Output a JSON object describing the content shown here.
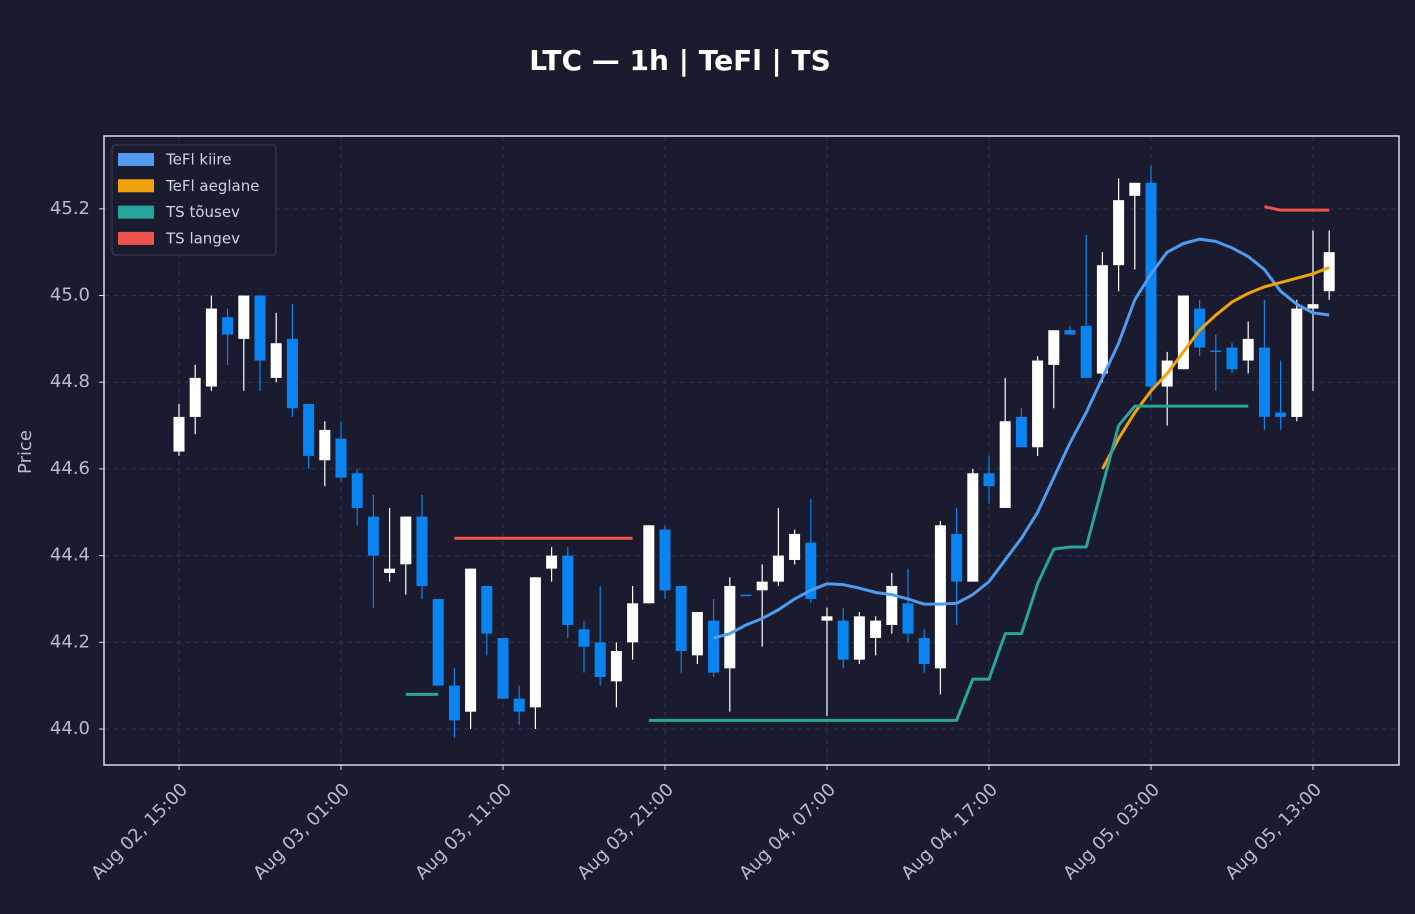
{
  "chart_data": {
    "type": "candlestick",
    "title": "LTC — 1h  |  TeFl  |  TS",
    "y_label": "Price",
    "categories": [
      "Aug 02, 15:00",
      null,
      null,
      null,
      null,
      null,
      null,
      null,
      null,
      null,
      "Aug 03, 01:00",
      null,
      null,
      null,
      null,
      null,
      null,
      null,
      null,
      null,
      "Aug 03, 11:00",
      null,
      null,
      null,
      null,
      null,
      null,
      null,
      null,
      null,
      "Aug 03, 21:00",
      null,
      null,
      null,
      null,
      null,
      null,
      null,
      null,
      null,
      "Aug 04, 07:00",
      null,
      null,
      null,
      null,
      null,
      null,
      null,
      null,
      null,
      "Aug 04, 17:00",
      null,
      null,
      null,
      null,
      null,
      null,
      null,
      null,
      null,
      "Aug 05, 03:00",
      null,
      null,
      null,
      null,
      null,
      null,
      null,
      null,
      null,
      "Aug 05, 13:00",
      null
    ],
    "open": [
      44.64,
      44.72,
      44.79,
      44.95,
      44.9,
      45.0,
      44.81,
      44.9,
      44.75,
      44.62,
      44.67,
      44.59,
      44.49,
      44.36,
      44.38,
      44.49,
      44.3,
      44.1,
      44.04,
      44.33,
      44.21,
      44.07,
      44.05,
      44.37,
      44.4,
      44.23,
      44.2,
      44.11,
      44.2,
      44.29,
      44.46,
      44.33,
      44.17,
      44.25,
      44.14,
      44.31,
      44.32,
      44.34,
      44.39,
      44.43,
      44.25,
      44.25,
      44.16,
      44.21,
      44.24,
      44.29,
      44.21,
      44.14,
      44.45,
      44.34,
      44.59,
      44.51,
      44.72,
      44.65,
      44.84,
      44.92,
      44.93,
      44.82,
      45.07,
      45.23,
      45.26,
      44.79,
      44.83,
      44.97,
      44.873,
      44.88,
      44.85,
      44.88,
      44.73,
      44.72,
      44.97,
      45.01
    ],
    "high": [
      44.75,
      44.84,
      45.0,
      44.97,
      45.0,
      45.0,
      44.96,
      44.98,
      44.75,
      44.71,
      44.71,
      44.6,
      44.54,
      44.51,
      44.49,
      44.54,
      44.3,
      44.14,
      44.37,
      44.33,
      44.21,
      44.1,
      44.35,
      44.42,
      44.42,
      44.25,
      44.33,
      44.2,
      44.33,
      44.47,
      44.47,
      44.33,
      44.27,
      44.3,
      44.35,
      44.31,
      44.38,
      44.51,
      44.46,
      44.53,
      44.28,
      44.28,
      44.27,
      44.26,
      44.36,
      44.37,
      44.23,
      44.48,
      44.51,
      44.6,
      44.63,
      44.81,
      44.74,
      44.86,
      44.92,
      44.93,
      45.14,
      45.1,
      45.27,
      45.26,
      45.3,
      44.87,
      45.0,
      44.99,
      44.91,
      44.89,
      44.94,
      44.99,
      44.85,
      44.99,
      45.15,
      45.15
    ],
    "low": [
      44.63,
      44.68,
      44.78,
      44.84,
      44.78,
      44.78,
      44.8,
      44.72,
      44.6,
      44.56,
      44.57,
      44.47,
      44.28,
      44.34,
      44.31,
      44.3,
      44.1,
      43.98,
      44.0,
      44.17,
      44.07,
      44.01,
      44.0,
      44.34,
      44.21,
      44.13,
      44.1,
      44.05,
      44.16,
      44.29,
      44.3,
      44.13,
      44.15,
      44.12,
      44.04,
      44.31,
      44.19,
      44.33,
      44.38,
      44.29,
      44.03,
      44.14,
      44.15,
      44.17,
      44.22,
      44.2,
      44.13,
      44.08,
      44.24,
      44.34,
      44.52,
      44.51,
      44.65,
      44.63,
      44.74,
      44.91,
      44.81,
      44.8,
      45.01,
      45.06,
      44.76,
      44.7,
      44.83,
      44.86,
      44.78,
      44.82,
      44.82,
      44.69,
      44.69,
      44.71,
      44.78,
      44.99
    ],
    "close": [
      44.72,
      44.81,
      44.97,
      44.91,
      45.0,
      44.85,
      44.89,
      44.74,
      44.63,
      44.69,
      44.58,
      44.51,
      44.4,
      44.37,
      44.49,
      44.33,
      44.1,
      44.02,
      44.37,
      44.22,
      44.07,
      44.04,
      44.35,
      44.4,
      44.24,
      44.19,
      44.12,
      44.18,
      44.29,
      44.47,
      44.32,
      44.18,
      44.27,
      44.13,
      44.33,
      44.307,
      44.34,
      44.4,
      44.45,
      44.3,
      44.26,
      44.16,
      44.26,
      44.25,
      44.33,
      44.22,
      44.15,
      44.47,
      44.34,
      44.59,
      44.56,
      44.71,
      44.65,
      44.85,
      44.92,
      44.91,
      44.81,
      45.07,
      45.22,
      45.26,
      44.79,
      44.85,
      45.0,
      44.88,
      44.87,
      44.83,
      44.9,
      44.72,
      44.72,
      44.97,
      44.98,
      45.1
    ],
    "up_color": "#ffffff",
    "down_color": "#0a84f0",
    "series": [
      {
        "name": "TeFl kiire",
        "color": "#4f9cf0",
        "values": [
          null,
          null,
          null,
          null,
          null,
          null,
          null,
          null,
          null,
          null,
          null,
          null,
          null,
          null,
          null,
          null,
          null,
          null,
          null,
          null,
          null,
          null,
          null,
          null,
          null,
          null,
          null,
          null,
          null,
          null,
          null,
          null,
          null,
          44.21,
          44.22,
          44.24,
          44.255,
          44.275,
          44.3,
          44.32,
          44.335,
          44.333,
          44.325,
          44.315,
          44.31,
          44.3,
          44.288,
          44.288,
          44.29,
          44.31,
          44.34,
          44.39,
          44.44,
          44.5,
          44.58,
          44.66,
          44.73,
          44.81,
          44.89,
          44.99,
          45.05,
          45.1,
          45.12,
          45.13,
          45.125,
          45.11,
          45.09,
          45.06,
          45.01,
          44.98,
          44.96,
          44.955
        ]
      },
      {
        "name": "TeFl aeglane",
        "color": "#f0a30a",
        "values": [
          null,
          null,
          null,
          null,
          null,
          null,
          null,
          null,
          null,
          null,
          null,
          null,
          null,
          null,
          null,
          null,
          null,
          null,
          null,
          null,
          null,
          null,
          null,
          null,
          null,
          null,
          null,
          null,
          null,
          null,
          null,
          null,
          null,
          null,
          null,
          null,
          null,
          null,
          null,
          null,
          null,
          null,
          null,
          null,
          null,
          null,
          null,
          null,
          null,
          null,
          null,
          null,
          null,
          null,
          null,
          null,
          null,
          44.6,
          44.67,
          44.73,
          44.78,
          44.82,
          44.87,
          44.92,
          44.955,
          44.985,
          45.005,
          45.02,
          45.03,
          45.04,
          45.05,
          45.065
        ]
      },
      {
        "name": "TS tõusev",
        "color": "#26a69a",
        "values": [
          null,
          null,
          null,
          null,
          null,
          null,
          null,
          null,
          null,
          null,
          null,
          null,
          null,
          null,
          44.08,
          44.08,
          44.08,
          null,
          null,
          null,
          null,
          null,
          null,
          null,
          null,
          null,
          null,
          null,
          null,
          44.02,
          44.02,
          44.02,
          44.02,
          44.02,
          44.02,
          44.02,
          44.02,
          44.02,
          44.02,
          44.02,
          44.02,
          44.02,
          44.02,
          44.02,
          44.02,
          44.02,
          44.02,
          44.02,
          44.02,
          44.115,
          44.115,
          44.22,
          44.22,
          44.335,
          44.415,
          44.42,
          44.42,
          44.56,
          44.7,
          44.745,
          44.745,
          44.745,
          44.745,
          44.745,
          44.745,
          44.745,
          44.745,
          null,
          null,
          null,
          null,
          null
        ]
      },
      {
        "name": "TS langev",
        "color": "#ef5350",
        "values": [
          null,
          null,
          null,
          null,
          null,
          null,
          null,
          null,
          null,
          null,
          null,
          null,
          null,
          null,
          null,
          null,
          null,
          44.44,
          44.44,
          44.44,
          44.44,
          44.44,
          44.44,
          44.44,
          44.44,
          44.44,
          44.44,
          44.44,
          44.44,
          null,
          null,
          null,
          null,
          null,
          null,
          null,
          null,
          null,
          null,
          null,
          null,
          null,
          null,
          null,
          null,
          null,
          null,
          null,
          null,
          null,
          null,
          null,
          null,
          null,
          null,
          null,
          null,
          null,
          null,
          null,
          null,
          null,
          null,
          null,
          null,
          null,
          null,
          45.205,
          45.197,
          45.197,
          45.197,
          45.197
        ]
      }
    ],
    "ylim": [
      43.917,
      45.368
    ],
    "yticks": [
      {
        "value": 44.0,
        "label": "44.0"
      },
      {
        "value": 44.2,
        "label": "44.2"
      },
      {
        "value": 44.4,
        "label": "44.4"
      },
      {
        "value": 44.6,
        "label": "44.6"
      },
      {
        "value": 44.8,
        "label": "44.8"
      },
      {
        "value": 45.0,
        "label": "45.0"
      },
      {
        "value": 45.2,
        "label": "45.2"
      }
    ],
    "grid": true,
    "legend": "upper left"
  }
}
